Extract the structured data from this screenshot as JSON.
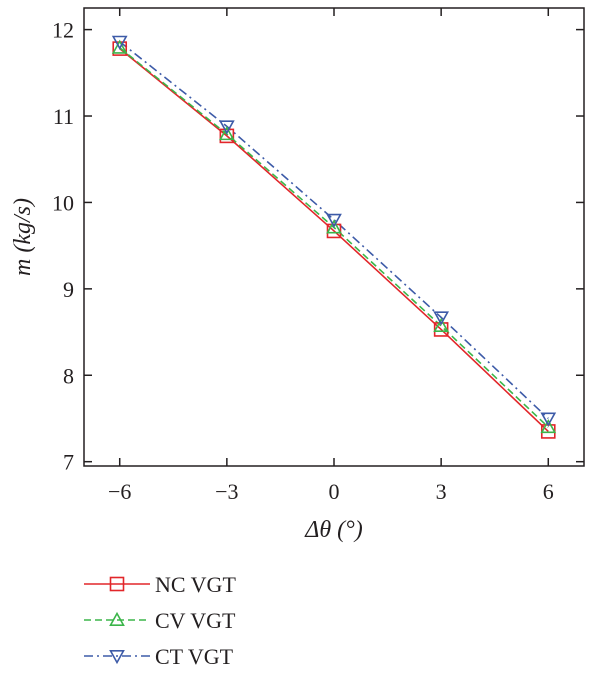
{
  "chart_data": {
    "type": "line",
    "xlabel": "Δθ (°)",
    "ylabel": "m (kg/s)",
    "x": [
      -6,
      -3,
      0,
      3,
      6
    ],
    "xlim": [
      -7,
      7
    ],
    "ylim": [
      6.95,
      12.25
    ],
    "xticks": [
      -6,
      -3,
      0,
      3,
      6
    ],
    "xtick_labels": [
      "−6",
      "−3",
      "0",
      "3",
      "6"
    ],
    "yticks": [
      7,
      8,
      9,
      10,
      11,
      12
    ],
    "ytick_labels": [
      "7",
      "8",
      "9",
      "10",
      "11",
      "12"
    ],
    "grid": false,
    "legend_position": "bottom-left, below plot",
    "series": [
      {
        "name": "NC VGT",
        "values": [
          11.78,
          10.77,
          9.67,
          8.53,
          7.35
        ],
        "color": "#e2262a",
        "dash": "solid",
        "marker": "square"
      },
      {
        "name": "CV VGT",
        "values": [
          11.79,
          10.79,
          9.71,
          8.57,
          7.4
        ],
        "color": "#3bb54a",
        "dash": "dashed",
        "marker": "triangle-up"
      },
      {
        "name": "CT VGT",
        "values": [
          11.86,
          10.88,
          9.8,
          8.67,
          7.5
        ],
        "color": "#3d5ba8",
        "dash": "dashdot",
        "marker": "triangle-down"
      }
    ]
  }
}
